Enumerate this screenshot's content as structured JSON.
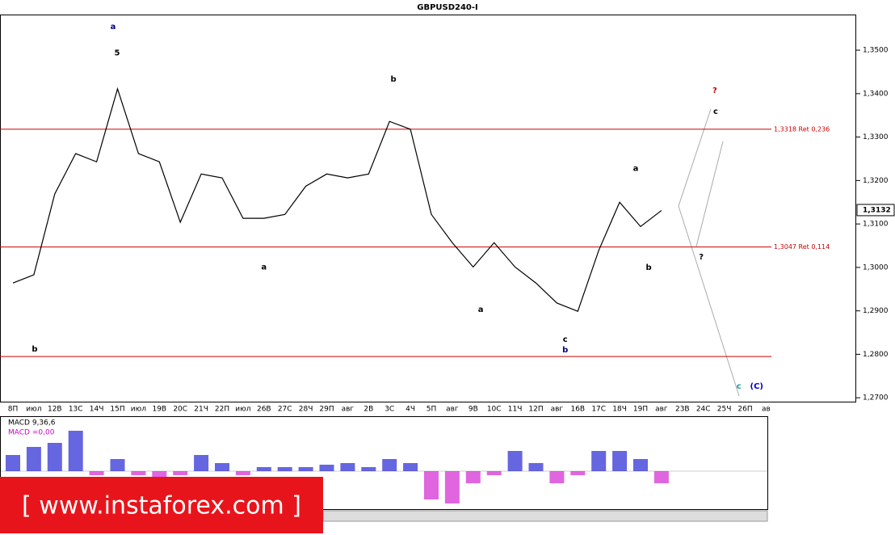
{
  "chart_data": {
    "type": "line",
    "title": "GBPUSD240-I",
    "categories": [
      "8П",
      "июл",
      "12В",
      "13С",
      "14Ч",
      "15П",
      "июл",
      "19В",
      "20С",
      "21Ч",
      "22П",
      "июл",
      "26В",
      "27С",
      "28Ч",
      "29П",
      "авг",
      "2В",
      "3С",
      "4Ч",
      "5П",
      "авг",
      "9В",
      "10С",
      "11Ч",
      "12П",
      "авг",
      "16В",
      "17С",
      "18Ч",
      "19П",
      "авг",
      "23В",
      "24С",
      "25Ч",
      "26П",
      "ав"
    ],
    "series": [
      {
        "name": "GBPUSD",
        "color": "#000000",
        "values": [
          1.2964,
          1.2983,
          1.3169,
          1.3262,
          1.3243,
          1.3411,
          1.3262,
          1.3243,
          1.3104,
          1.3215,
          1.3206,
          1.3113,
          1.3113,
          1.3122,
          1.3187,
          1.3215,
          1.3206,
          1.3215,
          1.3336,
          1.3318,
          1.3122,
          1.3057,
          1.3001,
          1.3057,
          1.3001,
          1.2964,
          1.2918,
          1.2899,
          1.3039,
          1.315,
          1.3094,
          1.3131,
          null,
          null,
          null,
          null,
          null
        ]
      }
    ],
    "ylim": [
      1.2691,
      1.3582
    ],
    "yticks": [
      {
        "value": 1.35,
        "label": "1,3500"
      },
      {
        "value": 1.34,
        "label": "1,3400"
      },
      {
        "value": 1.33,
        "label": "1,3300"
      },
      {
        "value": 1.32,
        "label": "1,3200"
      },
      {
        "value": 1.31,
        "label": "1,3100"
      },
      {
        "value": 1.3,
        "label": "1,3000"
      },
      {
        "value": 1.29,
        "label": "1,2900"
      },
      {
        "value": 1.28,
        "label": "1,2800"
      },
      {
        "value": 1.27,
        "label": "1,2700"
      }
    ],
    "current_price": {
      "value": 1.3132,
      "label": "1,3132"
    },
    "levels": [
      {
        "value": 1.3318,
        "label": "1,3318 Ret 0,236",
        "color": "#cc0000"
      },
      {
        "value": 1.3047,
        "label": "1,3047 Ret 0,114",
        "color": "#cc0000"
      },
      {
        "value": 1.2795,
        "color": "#cc0000"
      }
    ],
    "annotations": [
      {
        "text": "a",
        "x": 4.79,
        "y": 1.3554,
        "color": "#000080"
      },
      {
        "text": "5",
        "x": 4.98,
        "y": 1.3494,
        "color": "#000000"
      },
      {
        "text": "b",
        "x": 18.19,
        "y": 1.3433,
        "color": "#000000"
      },
      {
        "text": "b",
        "x": 1.04,
        "y": 1.2812,
        "color": "#000000"
      },
      {
        "text": "a",
        "x": 12.0,
        "y": 1.3001,
        "color": "#000000"
      },
      {
        "text": "a",
        "x": 22.36,
        "y": 1.2903,
        "color": "#000000"
      },
      {
        "text": "c",
        "x": 26.4,
        "y": 1.2834,
        "color": "#000000"
      },
      {
        "text": "b",
        "x": 26.4,
        "y": 1.281,
        "color": "#000080"
      },
      {
        "text": "a",
        "x": 29.77,
        "y": 1.3228,
        "color": "#000000"
      },
      {
        "text": "b",
        "x": 30.39,
        "y": 1.3,
        "color": "#000000"
      },
      {
        "text": "?",
        "x": 33.55,
        "y": 1.3407,
        "color": "#cc0000"
      },
      {
        "text": "c",
        "x": 33.59,
        "y": 1.3359,
        "color": "#000000"
      },
      {
        "text": "?",
        "x": 32.9,
        "y": 1.3024,
        "color": "#000000"
      },
      {
        "text": "c",
        "x": 34.7,
        "y": 1.2726,
        "color": "#1a9a9a"
      },
      {
        "text": "(C)",
        "x": 35.55,
        "y": 1.2726,
        "color": "#0000cc"
      }
    ],
    "macd": {
      "label": "MACD 9,36,6",
      "value_label": "MACD =0,00",
      "values": [
        20,
        30,
        35,
        50,
        -5,
        15,
        -5,
        -8,
        -5,
        20,
        10,
        -5,
        5,
        5,
        5,
        8,
        10,
        5,
        15,
        10,
        -35,
        -40,
        -15,
        -5,
        25,
        10,
        -15,
        -5,
        25,
        25,
        15,
        -15,
        null,
        null,
        null,
        null,
        null
      ],
      "positive_color": "#0000cc",
      "negative_color": "#cc00cc"
    },
    "watermark": "[ www.instaforex.com ]"
  }
}
